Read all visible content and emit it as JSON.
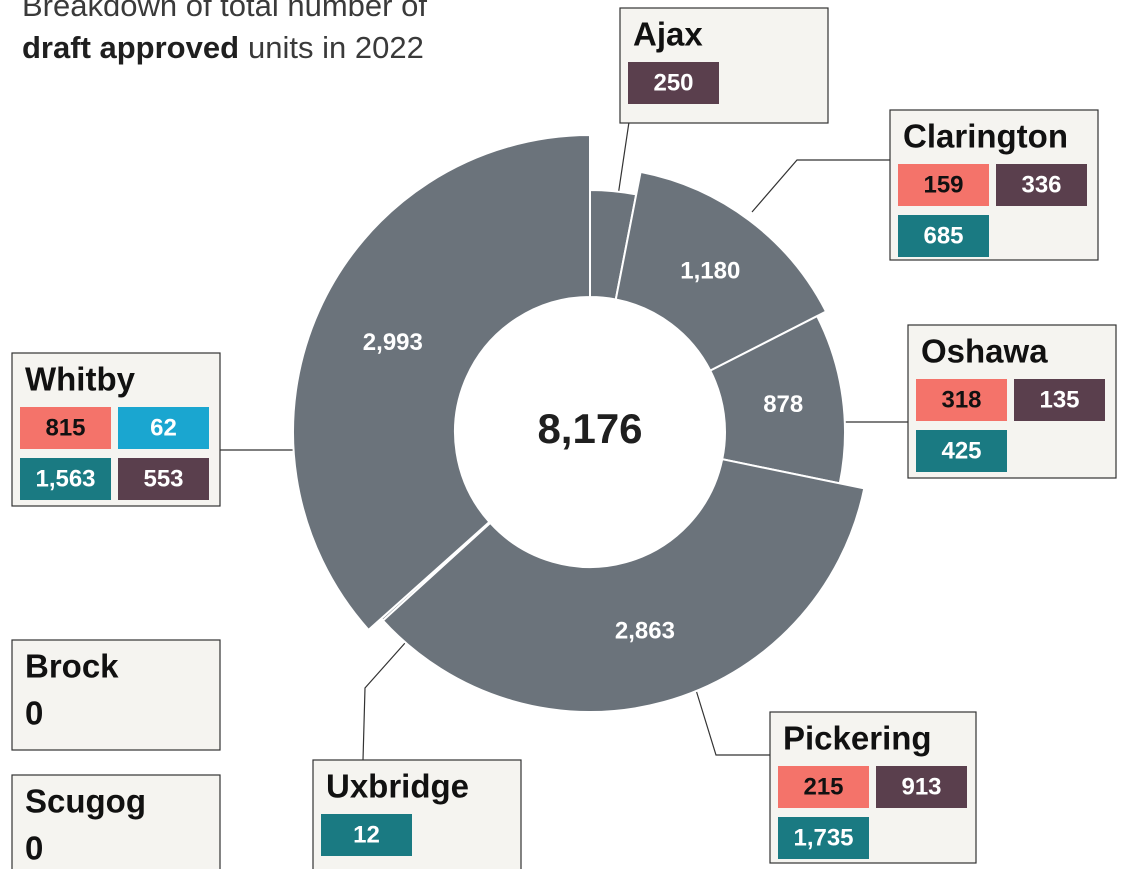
{
  "chart_data": {
    "type": "donut",
    "title": [
      "Breakdown of total number of",
      "draft approved",
      "units in 2022"
    ],
    "categories": [
      "Ajax",
      "Clarington",
      "Oshawa",
      "Pickering",
      "Uxbridge",
      "Whitby"
    ],
    "values": [
      250,
      1180,
      878,
      2863,
      12,
      2993
    ],
    "value_labels": [
      null,
      "1,180",
      "878",
      "2,863",
      null,
      "2,993"
    ],
    "color": "#6b737b",
    "total": 8176,
    "total_label": "8,176",
    "callouts": [
      {
        "name": "Ajax",
        "values": [
          250
        ],
        "value_labels": [
          "250"
        ],
        "colors": [
          "#5a3f4d"
        ]
      },
      {
        "name": "Clarington",
        "values": [
          159,
          336,
          685
        ],
        "value_labels": [
          "159",
          "336",
          "685"
        ],
        "colors": [
          "#f4736a",
          "#5a3f4d",
          "#1a7a82"
        ]
      },
      {
        "name": "Oshawa",
        "values": [
          318,
          135,
          425
        ],
        "value_labels": [
          "318",
          "135",
          "425"
        ],
        "colors": [
          "#f4736a",
          "#5a3f4d",
          "#1a7a82"
        ]
      },
      {
        "name": "Pickering",
        "values": [
          215,
          913,
          1735
        ],
        "value_labels": [
          "215",
          "913",
          "1,735"
        ],
        "colors": [
          "#f4736a",
          "#5a3f4d",
          "#1a7a82"
        ]
      },
      {
        "name": "Uxbridge",
        "values": [
          12
        ],
        "value_labels": [
          "12"
        ],
        "colors": [
          "#1a7a82"
        ]
      },
      {
        "name": "Whitby",
        "values": [
          815,
          62,
          1563,
          553
        ],
        "value_labels": [
          "815",
          "62",
          "1,563",
          "553"
        ],
        "colors": [
          "#f4736a",
          "#1aa6d0",
          "#1a7a82",
          "#5a3f4d"
        ]
      },
      {
        "name": "Brock",
        "value": 0
      },
      {
        "name": "Scugog",
        "value": 0
      }
    ]
  }
}
